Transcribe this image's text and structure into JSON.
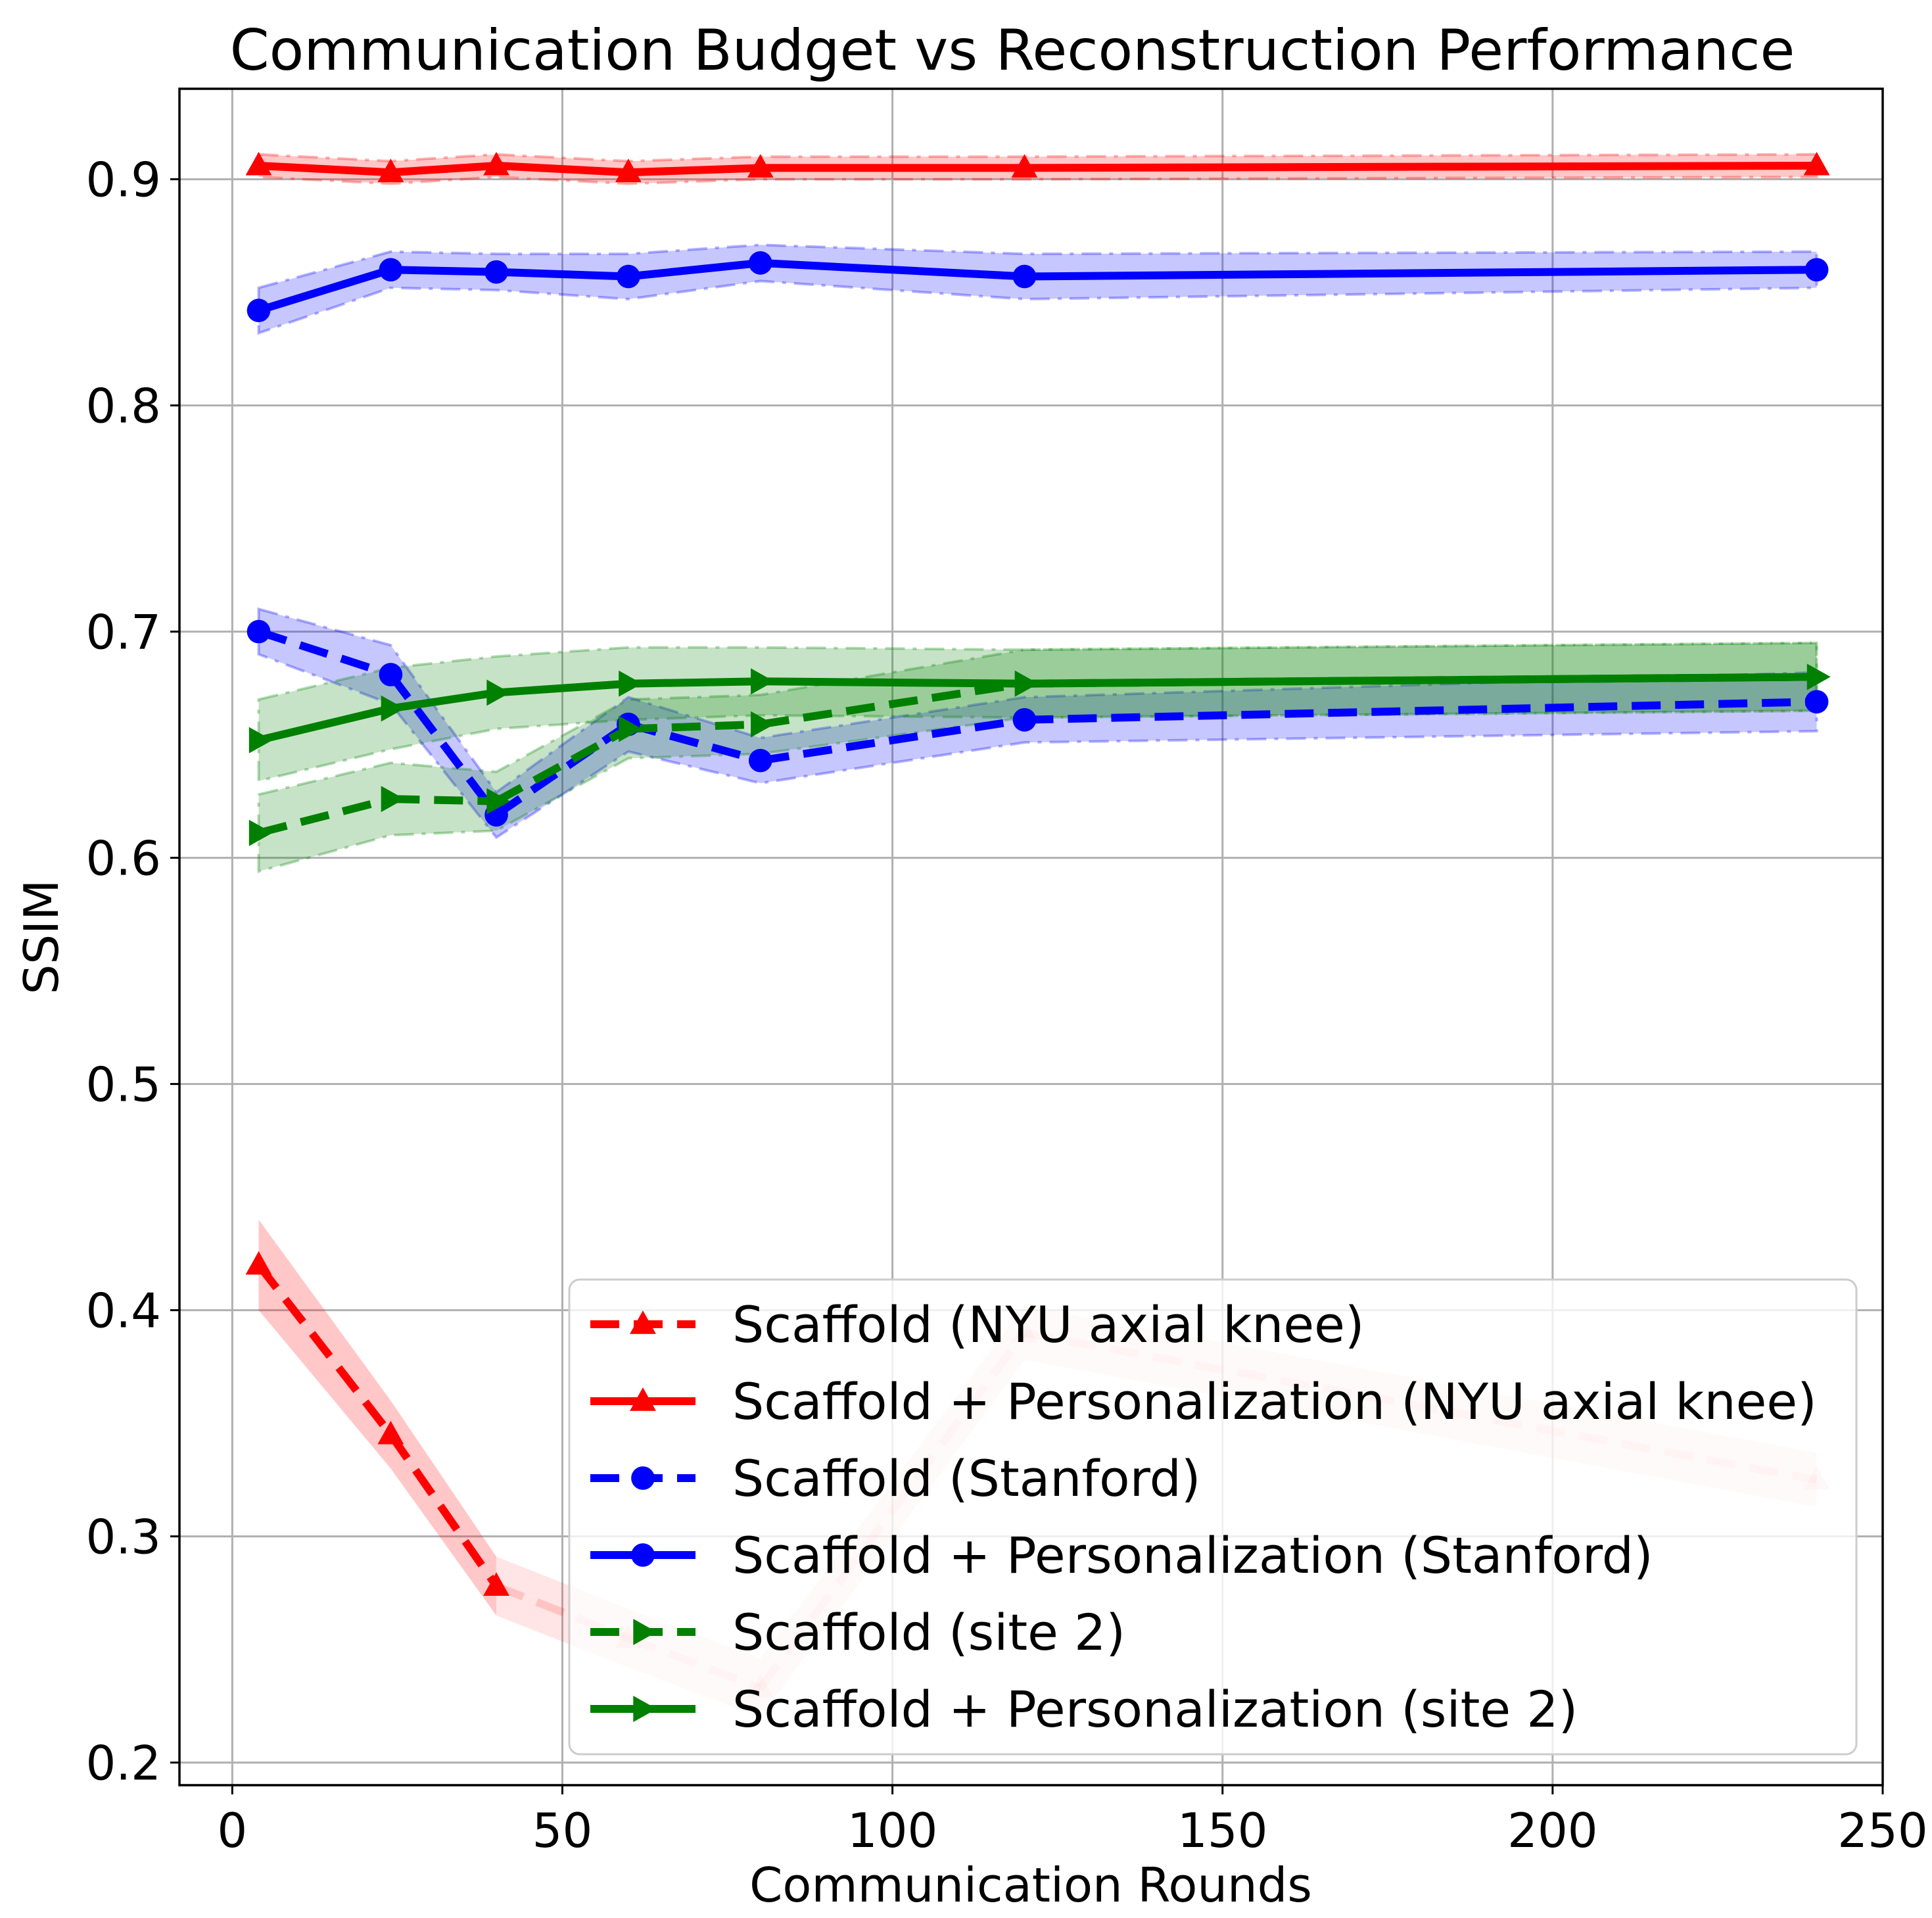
{
  "chart_data": {
    "type": "line",
    "title": "Communication Budget vs Reconstruction Performance",
    "xlabel": "Communication Rounds",
    "ylabel": "SSIM",
    "xlim": [
      -8,
      250
    ],
    "ylim": [
      0.19,
      0.94
    ],
    "xticks": [
      0,
      50,
      100,
      150,
      200,
      250
    ],
    "yticks": [
      0.2,
      0.3,
      0.4,
      0.5,
      0.6,
      0.7,
      0.8,
      0.9
    ],
    "xtick_labels": [
      "0",
      "50",
      "100",
      "150",
      "200",
      "250"
    ],
    "ytick_labels": [
      "0.2",
      "0.3",
      "0.4",
      "0.5",
      "0.6",
      "0.7",
      "0.8",
      "0.9"
    ],
    "grid": true,
    "legend_position": "lower-right",
    "series": [
      {
        "name": "Scaffold (NYU axial knee)",
        "color": "#ff0000",
        "linestyle": "dashed",
        "marker": "triangle-up",
        "x": [
          4,
          24,
          40,
          60,
          80,
          120,
          240
        ],
        "y": [
          0.42,
          0.345,
          0.278,
          0.255,
          0.233,
          0.39,
          0.325
        ],
        "band": [
          0.02,
          0.015,
          0.013,
          0.013,
          0.013,
          0.012,
          0.012
        ],
        "point_alpha": [
          1,
          1,
          1,
          0.15,
          0.15,
          0.15,
          0.15
        ]
      },
      {
        "name": "Scaffold + Personalization (NYU axial knee)",
        "color": "#ff0000",
        "linestyle": "solid",
        "marker": "triangle-up",
        "x": [
          4,
          24,
          40,
          60,
          80,
          120,
          240
        ],
        "y": [
          0.906,
          0.903,
          0.906,
          0.903,
          0.905,
          0.905,
          0.906
        ],
        "band": [
          0.005,
          0.005,
          0.005,
          0.005,
          0.005,
          0.005,
          0.005
        ],
        "point_alpha": [
          1,
          1,
          1,
          1,
          1,
          1,
          1
        ]
      },
      {
        "name": "Scaffold (Stanford)",
        "color": "#0000ff",
        "linestyle": "dashed",
        "marker": "circle",
        "x": [
          4,
          24,
          40,
          60,
          80,
          120,
          240
        ],
        "y": [
          0.7,
          0.681,
          0.619,
          0.659,
          0.643,
          0.661,
          0.669
        ],
        "band": [
          0.01,
          0.013,
          0.01,
          0.012,
          0.01,
          0.01,
          0.013
        ],
        "point_alpha": [
          1,
          1,
          1,
          1,
          1,
          1,
          1
        ]
      },
      {
        "name": "Scaffold + Personalization (Stanford)",
        "color": "#0000ff",
        "linestyle": "solid",
        "marker": "circle",
        "x": [
          4,
          24,
          40,
          60,
          80,
          120,
          240
        ],
        "y": [
          0.842,
          0.86,
          0.859,
          0.857,
          0.863,
          0.857,
          0.86
        ],
        "band": [
          0.01,
          0.008,
          0.008,
          0.01,
          0.008,
          0.01,
          0.008
        ],
        "point_alpha": [
          1,
          1,
          1,
          1,
          1,
          1,
          1
        ]
      },
      {
        "name": "Scaffold (site 2)",
        "color": "#008000",
        "linestyle": "dashed",
        "marker": "triangle-right",
        "x": [
          4,
          24,
          40,
          60,
          80,
          120,
          240
        ],
        "y": [
          0.611,
          0.626,
          0.625,
          0.657,
          0.659,
          0.677,
          0.68
        ],
        "band": [
          0.017,
          0.016,
          0.013,
          0.013,
          0.013,
          0.015,
          0.015
        ],
        "point_alpha": [
          1,
          1,
          1,
          1,
          1,
          1,
          1
        ]
      },
      {
        "name": "Scaffold + Personalization (site 2)",
        "color": "#008000",
        "linestyle": "solid",
        "marker": "triangle-right",
        "x": [
          4,
          24,
          40,
          60,
          80,
          120,
          240
        ],
        "y": [
          0.652,
          0.666,
          0.673,
          0.677,
          0.678,
          0.677,
          0.68
        ],
        "band": [
          0.018,
          0.018,
          0.016,
          0.016,
          0.015,
          0.015,
          0.015
        ],
        "point_alpha": [
          1,
          1,
          1,
          1,
          1,
          1,
          1
        ]
      }
    ]
  }
}
